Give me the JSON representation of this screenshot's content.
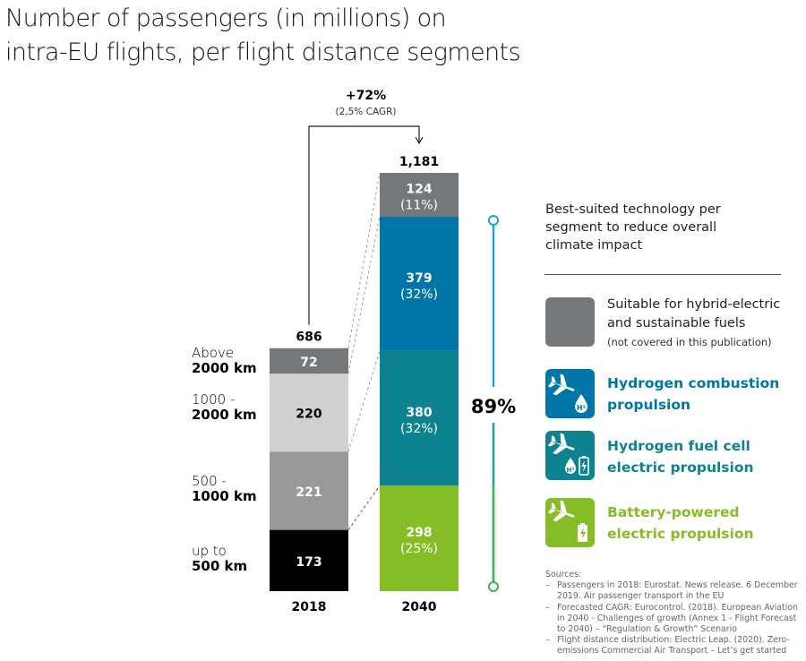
{
  "title": {
    "line1": "Number of passengers (in millions) on",
    "line2": "intra-EU flights, per flight distance segments"
  },
  "chart_data": {
    "type": "bar",
    "subtype": "stacked",
    "title": "Number of passengers (in millions) on intra-EU flights, per flight distance segments",
    "categories": [
      "2018",
      "2040"
    ],
    "segments": [
      {
        "label_line1": "up to",
        "label_line2": "500 km"
      },
      {
        "label_line1": "500 -",
        "label_line2": "1000 km"
      },
      {
        "label_line1": "1000 -",
        "label_line2": "2000 km"
      },
      {
        "label_line1": "Above",
        "label_line2": "2000 km"
      }
    ],
    "series": [
      {
        "name": "2018",
        "total": 686,
        "total_label": "686",
        "values": [
          173,
          221,
          220,
          72
        ],
        "labels": [
          "173",
          "221",
          "220",
          "72"
        ],
        "colors": [
          "#000000",
          "#97999b",
          "#d0d0ce",
          "#75787b"
        ],
        "text_colors": [
          "#ffffff",
          "#ffffff",
          "#000000",
          "#ffffff"
        ]
      },
      {
        "name": "2040",
        "total": 1181,
        "total_label": "1,181",
        "values": [
          298,
          380,
          379,
          124
        ],
        "labels": [
          "298",
          "380",
          "379",
          "124"
        ],
        "shares": [
          "(25%)",
          "(32%)",
          "(32%)",
          "(11%)"
        ],
        "colors": [
          "#86bc25",
          "#0d8390",
          "#0076a8",
          "#75787b"
        ],
        "text_colors": [
          "#ffffff",
          "#ffffff",
          "#ffffff",
          "#ffffff"
        ]
      }
    ],
    "growth": {
      "label": "+72%",
      "sublabel": "(2,5% CAGR)"
    },
    "bracket": {
      "label": "89%",
      "top_color": "#1ea2d6",
      "bottom_color": "#4caf50"
    },
    "xlabel": "",
    "ylabel": "",
    "ylim": [
      0,
      1181
    ]
  },
  "legend": {
    "heading": "Best-suited technology per segment to reduce overall climate impact",
    "items": [
      {
        "line1": "Suitable for hybrid-electric",
        "line2": "and sustainable fuels",
        "note": "(not covered in this publication)",
        "color": "#75787b",
        "icon": "none"
      },
      {
        "line1": "Hydrogen combustion",
        "line2": "propulsion",
        "color": "#0076a8",
        "icon": "airplane-hydrogen-icon"
      },
      {
        "line1": "Hydrogen fuel cell",
        "line2": "electric propulsion",
        "color": "#0d8390",
        "icon": "airplane-hydrogen-battery-icon"
      },
      {
        "line1": "Battery-powered",
        "line2": "electric propulsion",
        "color": "#86bc25",
        "icon": "airplane-battery-icon"
      }
    ]
  },
  "sources": {
    "heading": "Sources:",
    "items": [
      "Passengers in 2018: Eurostat. News release. 6 December 2019. Air passenger transport in the EU",
      "Forecasted CAGR: Eurocontrol. (2018). European Aviation in 2040 - Challenges of growth (Annex 1 - Flight Forecast to 2040) – “Regulation & Growth” Scenario",
      "Flight distance distribution: Electric Leap. (2020). Zero-emissions Commercial Air Transport – Let’s get started"
    ]
  }
}
